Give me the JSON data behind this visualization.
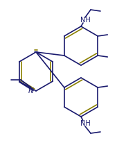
{
  "bg_color": "#ffffff",
  "line_color": "#1a1a6e",
  "double_bond_color": "#8b8000",
  "text_color": "#1a1a6e",
  "font_size": 6.5,
  "lw": 1.2,
  "figsize": [
    1.69,
    2.06
  ],
  "dpi": 100,
  "xlim": [
    0,
    169
  ],
  "ylim": [
    0,
    206
  ]
}
